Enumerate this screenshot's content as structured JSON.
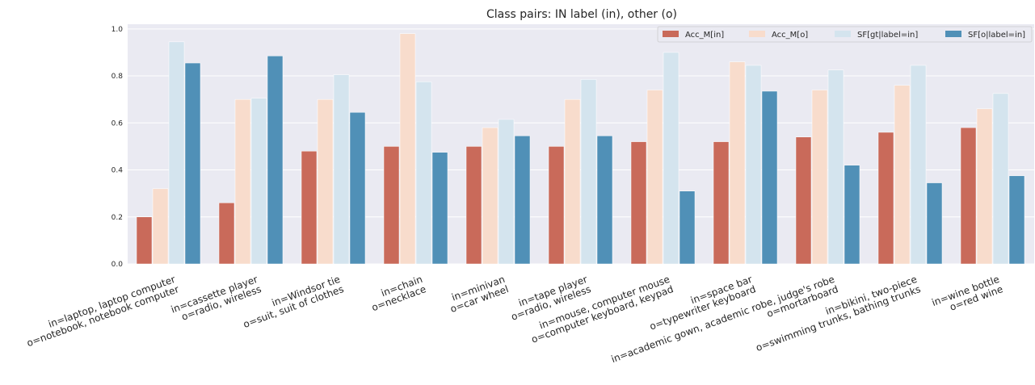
{
  "chart_data": {
    "type": "bar",
    "title": "Class pairs: IN label (in), other (o)",
    "xlabel": "",
    "ylabel": "",
    "ylim": [
      0,
      1.02
    ],
    "yticks": [
      "0.0",
      "0.2",
      "0.4",
      "0.6",
      "0.8",
      "1.0"
    ],
    "grid": true,
    "legend_position": "top-right",
    "categories": [
      [
        "in=laptop, laptop computer",
        "o=notebook, notebook computer"
      ],
      [
        "in=cassette player",
        "o=radio, wireless"
      ],
      [
        "in=Windsor tie",
        "o=suit, suit of clothes"
      ],
      [
        "in=chain",
        "o=necklace"
      ],
      [
        "in=minivan",
        "o=car wheel"
      ],
      [
        "in=tape player",
        "o=radio, wireless"
      ],
      [
        "in=mouse, computer mouse",
        "o=computer keyboard, keypad"
      ],
      [
        "in=space bar",
        "o=typewriter keyboard"
      ],
      [
        "in=academic gown, academic robe, judge's robe",
        "o=mortarboard"
      ],
      [
        "in=bikini, two-piece",
        "o=swimming trunks, bathing trunks"
      ],
      [
        "in=wine bottle",
        "o=red wine"
      ]
    ],
    "series": [
      {
        "name": "Acc_M[in]",
        "color": "#c96a5a",
        "values": [
          0.2,
          0.26,
          0.48,
          0.5,
          0.5,
          0.5,
          0.52,
          0.52,
          0.54,
          0.56,
          0.58
        ]
      },
      {
        "name": "Acc_M[o]",
        "color": "#f8dccc",
        "values": [
          0.32,
          0.7,
          0.7,
          0.98,
          0.58,
          0.7,
          0.74,
          0.86,
          0.74,
          0.76,
          0.66
        ]
      },
      {
        "name": "SF[gt|label=in]",
        "color": "#d4e4ee",
        "values": [
          0.945,
          0.705,
          0.805,
          0.775,
          0.615,
          0.785,
          0.9,
          0.845,
          0.825,
          0.845,
          0.725
        ]
      },
      {
        "name": "SF[o|label=in]",
        "color": "#5090b7",
        "values": [
          0.855,
          0.885,
          0.645,
          0.475,
          0.545,
          0.545,
          0.31,
          0.735,
          0.42,
          0.345,
          0.375
        ]
      }
    ]
  }
}
